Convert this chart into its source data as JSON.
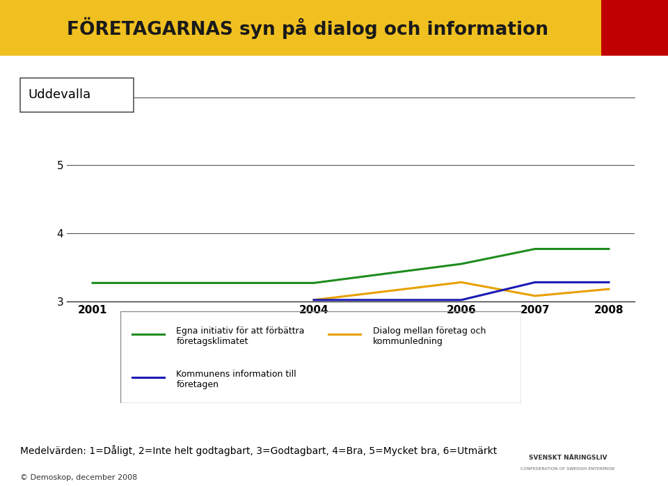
{
  "title": "FÖRETAGARNAS syn på dialog och information",
  "subtitle": "Uddevalla",
  "years": [
    2001,
    2004,
    2006,
    2007,
    2008
  ],
  "series": [
    {
      "label": "Egna initiativ för att förbättra\nföretagsklimatet",
      "color": "#1e8c1e",
      "values": [
        3.27,
        3.27,
        3.55,
        3.77,
        3.77
      ]
    },
    {
      "label": "Dialog mellan företag och\nkommunledning",
      "color": "#e8a000",
      "values": [
        null,
        3.02,
        3.28,
        3.08,
        3.18
      ]
    },
    {
      "label": "Kommunens information till\nföretagen",
      "color": "#1a1ab4",
      "values": [
        null,
        3.02,
        3.02,
        3.28,
        3.28
      ]
    }
  ],
  "ylim": [
    3.0,
    6.0
  ],
  "yticks": [
    3,
    4,
    5,
    6
  ],
  "bg_color": "#ffffff",
  "title_bg_color": "#f0c020",
  "title_text_color": "#1a1a1a",
  "title_red_color": "#c00000",
  "footer_text": "Medelvärden: 1=Dåligt, 2=Inte helt godtagbart, 3=Godtagbart, 4=Bra, 5=Mycket bra, 6=Utmärkt",
  "copyright_text": "© Demoskop, december 2008",
  "gridline_color": "#555555",
  "linewidth": 2.2,
  "legend_items": [
    {
      "label": "Egna initiativ för att förbättra\nföretagsklimatet",
      "color": "#1e8c1e",
      "col": 0
    },
    {
      "label": "Kommunens information till\nföretagen",
      "color": "#1a1ab4",
      "col": 0
    },
    {
      "label": "Dialog mellan företag och\nkommunledning",
      "color": "#e8a000",
      "col": 1
    }
  ]
}
